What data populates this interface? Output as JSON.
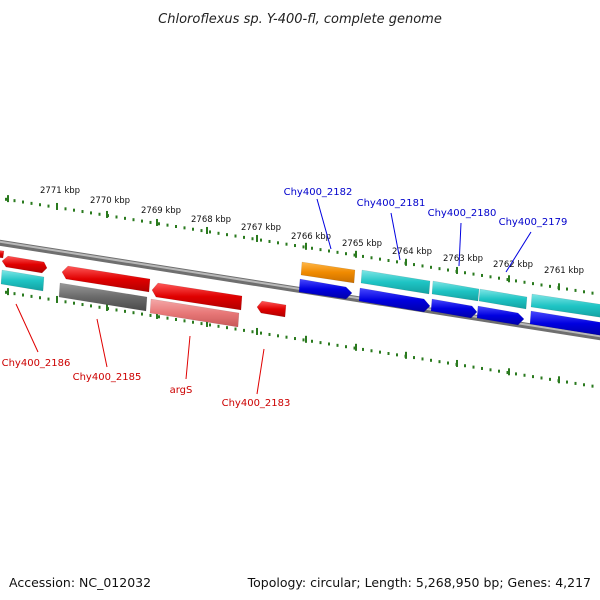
{
  "title": "Chloroflexus sp. Y-400-fl, complete genome",
  "footer": {
    "accession": "Accession: NC_012032",
    "summary": "Topology: circular; Length: 5,268,950 bp; Genes: 4,217"
  },
  "ticks": [
    {
      "label": "2771 kbp"
    },
    {
      "label": "2770 kbp"
    },
    {
      "label": "2769 kbp"
    },
    {
      "label": "2768 kbp"
    },
    {
      "label": "2767 kbp"
    },
    {
      "label": "2766 kbp"
    },
    {
      "label": "2765 kbp"
    },
    {
      "label": "2764 kbp"
    },
    {
      "label": "2763 kbp"
    },
    {
      "label": "2762 kbp"
    },
    {
      "label": "2761 kbp"
    }
  ],
  "gene_labels": [
    {
      "name": "Chy400_2182",
      "color": "#0000cc"
    },
    {
      "name": "Chy400_2181",
      "color": "#0000cc"
    },
    {
      "name": "Chy400_2180",
      "color": "#0000cc"
    },
    {
      "name": "Chy400_2179",
      "color": "#0000cc"
    },
    {
      "name": "Chy400_2186",
      "color": "#cc0000"
    },
    {
      "name": "Chy400_2185",
      "color": "#cc0000"
    },
    {
      "name": "argS",
      "color": "#cc0000"
    },
    {
      "name": "Chy400_2183",
      "color": "#cc0000"
    }
  ],
  "colors": {
    "tick_mark": "#2a7a1e",
    "backbone": "#8c8c8c",
    "gene_red": "#e00000",
    "gene_pink": "#e87878",
    "gene_grey": "#6a6a6a",
    "gene_teal": "#1fc4c4",
    "gene_orange": "#f08a00",
    "gene_blue": "#0000e0"
  }
}
